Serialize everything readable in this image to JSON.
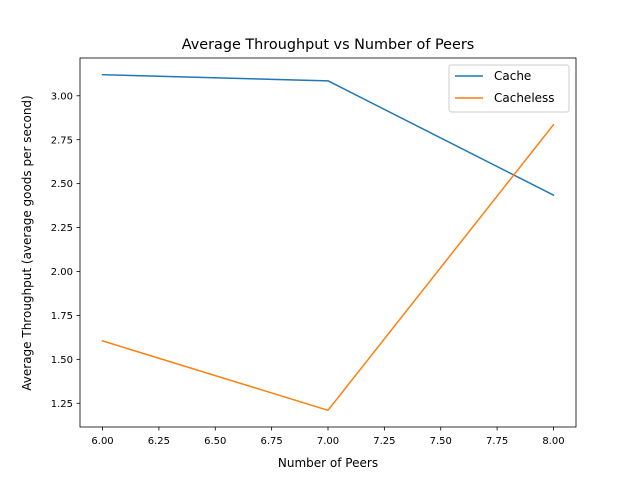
{
  "chart_data": {
    "type": "line",
    "title": "Average Throughput vs Number of Peers",
    "xlabel": "Number of Peers",
    "ylabel": "Average Throughput (average goods per second)",
    "x": [
      6,
      7,
      8
    ],
    "xlim": [
      5.9,
      8.1
    ],
    "ylim": [
      1.115,
      3.215
    ],
    "xticks": [
      6.0,
      6.25,
      6.5,
      6.75,
      7.0,
      7.25,
      7.5,
      7.75,
      8.0
    ],
    "xtick_labels": [
      "6.00",
      "6.25",
      "6.50",
      "6.75",
      "7.00",
      "7.25",
      "7.50",
      "7.75",
      "8.00"
    ],
    "yticks": [
      1.25,
      1.5,
      1.75,
      2.0,
      2.25,
      2.5,
      2.75,
      3.0
    ],
    "ytick_labels": [
      "1.25",
      "1.50",
      "1.75",
      "2.00",
      "2.25",
      "2.50",
      "2.75",
      "3.00"
    ],
    "grid": false,
    "legend_position": "top-right",
    "series": [
      {
        "name": "Cache",
        "color": "#1f77b4",
        "values": [
          3.12,
          3.085,
          2.435
        ]
      },
      {
        "name": "Cacheless",
        "color": "#ff7f0e",
        "values": [
          1.605,
          1.21,
          2.835
        ]
      }
    ]
  }
}
